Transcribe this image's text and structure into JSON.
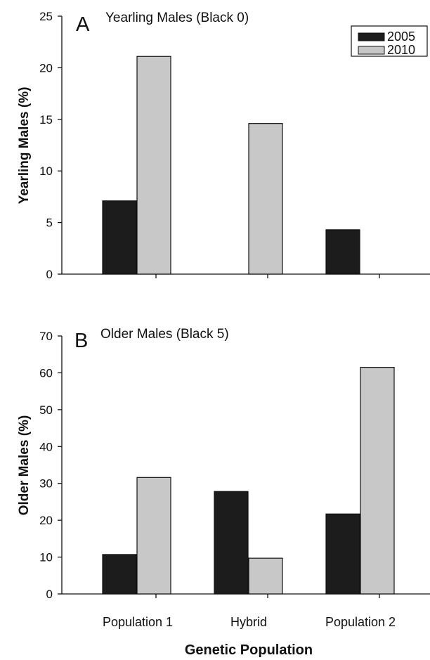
{
  "chart_data": [
    {
      "type": "bar",
      "panel_letter": "A",
      "title": "Yearling Males (Black 0)",
      "ylabel": "Yearling Males (%)",
      "xlabel": "",
      "ylim": [
        0,
        25
      ],
      "yticks": [
        0,
        5,
        10,
        15,
        20,
        25
      ],
      "categories": [
        "Population 1",
        "Hybrid",
        "Population 2"
      ],
      "series": [
        {
          "name": "2005",
          "values": [
            7.1,
            0,
            4.3
          ]
        },
        {
          "name": "2010",
          "values": [
            21.1,
            14.6,
            0
          ]
        }
      ],
      "legend": {
        "position": "top-right",
        "entries": [
          "2005",
          "2010"
        ]
      },
      "grid": false
    },
    {
      "type": "bar",
      "panel_letter": "B",
      "title": "Older Males (Black 5)",
      "ylabel": "Older Males (%)",
      "xlabel": "Genetic Population",
      "ylim": [
        0,
        70
      ],
      "yticks": [
        0,
        10,
        20,
        30,
        40,
        50,
        60,
        70
      ],
      "categories": [
        "Population 1",
        "Hybrid",
        "Population 2"
      ],
      "series": [
        {
          "name": "2005",
          "values": [
            10.7,
            27.8,
            21.7
          ]
        },
        {
          "name": "2010",
          "values": [
            31.6,
            9.7,
            61.5
          ]
        }
      ],
      "grid": false
    }
  ],
  "colors": {
    "2005": "#1c1c1c",
    "2010": "#c8c8c8",
    "axis": "#111111",
    "bar_stroke": "#111111"
  }
}
